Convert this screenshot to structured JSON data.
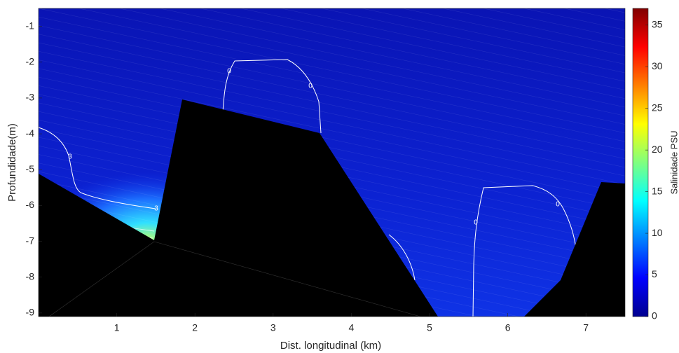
{
  "chart_data": {
    "type": "contour",
    "x_label": "Dist. longitudinal (km)",
    "y_label": "Profundidade(m)",
    "xlim": [
      0,
      7.5
    ],
    "xticks": [
      1,
      2,
      3,
      4,
      5,
      6,
      7
    ],
    "ylim": [
      -9.1,
      -0.5
    ],
    "yticks": [
      -9,
      -8,
      -7,
      -6,
      -5,
      -4,
      -3,
      -2,
      -1
    ],
    "colorbar": {
      "label": "Salinidade PSU",
      "colormap": "jet",
      "lim": [
        0,
        37
      ],
      "ticks": [
        0,
        5,
        10,
        15,
        20,
        25,
        30,
        35
      ]
    },
    "contour_levels": [
      0,
      3
    ]
  }
}
